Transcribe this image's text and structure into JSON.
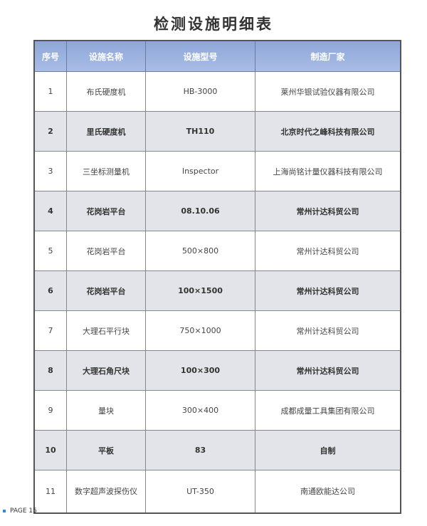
{
  "title": "检测设施明细表",
  "table": {
    "headers": [
      "序号",
      "设施名称",
      "设施型号",
      "制造厂家"
    ],
    "rows": [
      [
        "1",
        "布氏硬度机",
        "HB-3000",
        "莱州华银试验仪器有限公司"
      ],
      [
        "2",
        "里氏硬度机",
        "TH110",
        "北京时代之峰科技有限公司"
      ],
      [
        "3",
        "三坐标测量机",
        "Inspector",
        "上海尚铭计量仪器科技有限公司"
      ],
      [
        "4",
        "花岗岩平台",
        "08.10.06",
        "常州计达科贸公司"
      ],
      [
        "5",
        "花岗岩平台",
        "500×800",
        "常州计达科贸公司"
      ],
      [
        "6",
        "花岗岩平台",
        "100×1500",
        "常州计达科贸公司"
      ],
      [
        "7",
        "大理石平行块",
        "750×1000",
        "常州计达科贸公司"
      ],
      [
        "8",
        "大理石角尺块",
        "100×300",
        "常州计达科贸公司"
      ],
      [
        "9",
        "量块",
        "300×400",
        "成都成量工具集团有限公司"
      ],
      [
        "10",
        "平板",
        "83",
        "自制"
      ],
      [
        "11",
        "数字超声波探伤仪",
        "UT-350",
        "南通欧能达公司"
      ]
    ]
  },
  "footer": {
    "page": "PAGE 15"
  }
}
